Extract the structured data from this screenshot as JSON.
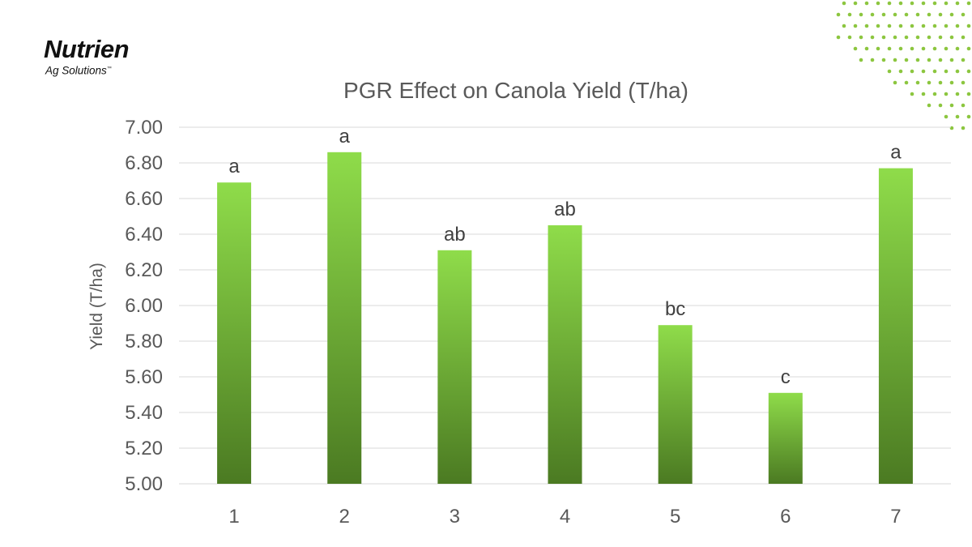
{
  "logo": {
    "brand": "Nutrien",
    "sub": "Ag Solutions"
  },
  "colors": {
    "bar_top": "#8fdc4a",
    "bar_bottom": "#4b7a22",
    "grid": "#d9d9d9",
    "text": "#595959",
    "dots": "#8cc63f",
    "brand_accent": "#5aa02c"
  },
  "chart_data": {
    "type": "bar",
    "title": "PGR Effect on Canola Yield (T/ha)",
    "xlabel": "",
    "ylabel": "Yield (T/ha)",
    "ylim": [
      5.0,
      7.0
    ],
    "ytick_step": 0.2,
    "yticks": [
      "5.00",
      "5.20",
      "5.40",
      "5.60",
      "5.80",
      "6.00",
      "6.20",
      "6.40",
      "6.60",
      "6.80",
      "7.00"
    ],
    "grid": true,
    "categories": [
      "1",
      "2",
      "3",
      "4",
      "5",
      "6",
      "7"
    ],
    "values": [
      6.69,
      6.86,
      6.31,
      6.45,
      5.89,
      5.51,
      6.77
    ],
    "data_labels": [
      "a",
      "a",
      "ab",
      "ab",
      "bc",
      "c",
      "a"
    ]
  }
}
